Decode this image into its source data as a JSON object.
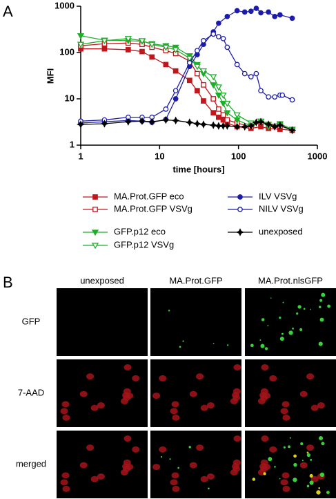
{
  "panel_labels": [
    "A",
    "B"
  ],
  "chart_data": {
    "type": "line",
    "x_label": "time [hours]",
    "y_label": "MFI",
    "xscale": "log",
    "yscale": "log",
    "xlim": [
      1,
      1000
    ],
    "ylim": [
      1,
      1000
    ],
    "xticks": [
      1,
      10,
      100,
      1000
    ],
    "yticks": [
      1,
      10,
      100,
      1000
    ],
    "series": [
      {
        "name": "MA.Prot.GFP eco",
        "color": "#c0171c",
        "marker": "square",
        "x": [
          1,
          2,
          4,
          6,
          8,
          12,
          16,
          24,
          30,
          36,
          48,
          56,
          64,
          72,
          96,
          144,
          192,
          240,
          336,
          480
        ],
        "values": [
          120,
          120,
          115,
          105,
          80,
          55,
          40,
          25,
          15,
          9,
          5,
          4,
          3.5,
          3,
          2.5,
          2.3,
          2.5,
          2.3,
          2.2,
          2.1
        ]
      },
      {
        "name": "MA.Prot.GFP VSVg",
        "color": "#c0171c",
        "marker": "square-open",
        "x": [
          1,
          2,
          4,
          6,
          8,
          12,
          16,
          24,
          30,
          36,
          48,
          56,
          64,
          72,
          96,
          144,
          192,
          240,
          336,
          480
        ],
        "values": [
          140,
          155,
          160,
          150,
          130,
          110,
          95,
          65,
          35,
          20,
          10,
          6,
          4.5,
          3.5,
          3,
          2.5,
          3.2,
          2.8,
          2.6,
          2.1
        ]
      },
      {
        "name": "GFP.p12 eco",
        "color": "#1fae2a",
        "marker": "triangle-down",
        "x": [
          1,
          2,
          4,
          6,
          8,
          12,
          16,
          24,
          30,
          36,
          48,
          56,
          64,
          72,
          96,
          144,
          192,
          240,
          336,
          480
        ],
        "values": [
          230,
          185,
          180,
          175,
          155,
          140,
          130,
          85,
          55,
          35,
          20,
          12,
          8,
          5,
          3.5,
          2.6,
          3.2,
          2.8,
          2.9,
          2.2
        ]
      },
      {
        "name": "GFP.p12 VSVg",
        "color": "#1fae2a",
        "marker": "triangle-down-open",
        "x": [
          1,
          2,
          4,
          6,
          8,
          12,
          16,
          24,
          30,
          36,
          48,
          56,
          64,
          72,
          96,
          144,
          192,
          240,
          336,
          480
        ],
        "values": [
          150,
          180,
          200,
          180,
          150,
          130,
          115,
          75,
          50,
          40,
          30,
          18,
          12,
          8,
          4.5,
          3,
          3.3,
          2.5,
          2.7,
          2.1
        ]
      },
      {
        "name": "ILV VSVg",
        "color": "#1c1ca8",
        "marker": "circle",
        "x": [
          1,
          2,
          4,
          6,
          8,
          12,
          16,
          24,
          30,
          36,
          48,
          56,
          72,
          96,
          120,
          144,
          168,
          192,
          240,
          288,
          336,
          480
        ],
        "values": [
          3,
          3.2,
          3.4,
          3.3,
          3.1,
          3.6,
          10,
          50,
          90,
          150,
          280,
          430,
          600,
          800,
          750,
          780,
          900,
          720,
          750,
          600,
          650,
          550
        ]
      },
      {
        "name": "NILV VSVg",
        "color": "#1c1ca8",
        "marker": "circle-open",
        "x": [
          1,
          2,
          4,
          6,
          8,
          12,
          16,
          24,
          30,
          36,
          48,
          56,
          64,
          72,
          96,
          120,
          144,
          168,
          192,
          240,
          288,
          336,
          360,
          480
        ],
        "values": [
          3.3,
          3.5,
          4,
          4,
          4,
          6,
          15,
          60,
          110,
          180,
          250,
          220,
          200,
          130,
          55,
          35,
          30,
          35,
          15,
          11,
          11,
          12,
          12,
          9.5
        ]
      },
      {
        "name": "unexposed",
        "color": "#000000",
        "marker": "cross",
        "x": [
          1,
          2,
          4,
          6,
          8,
          12,
          16,
          24,
          30,
          36,
          48,
          56,
          64,
          72,
          96,
          120,
          144,
          168,
          192,
          240,
          288,
          336,
          480
        ],
        "values": [
          2.8,
          2.9,
          3.2,
          3.3,
          3.2,
          3.5,
          3.4,
          3.1,
          2.9,
          2.8,
          2.7,
          2.6,
          2.6,
          2.6,
          2.5,
          2.5,
          2.6,
          3.1,
          3.2,
          2.8,
          2.5,
          2.7,
          2.1
        ]
      }
    ]
  },
  "micrographs": {
    "columns": [
      "unexposed",
      "MA.Prot.GFP",
      "MA.Prot.nlsGFP"
    ],
    "rows": [
      "GFP",
      "7-AAD",
      "merged"
    ]
  }
}
